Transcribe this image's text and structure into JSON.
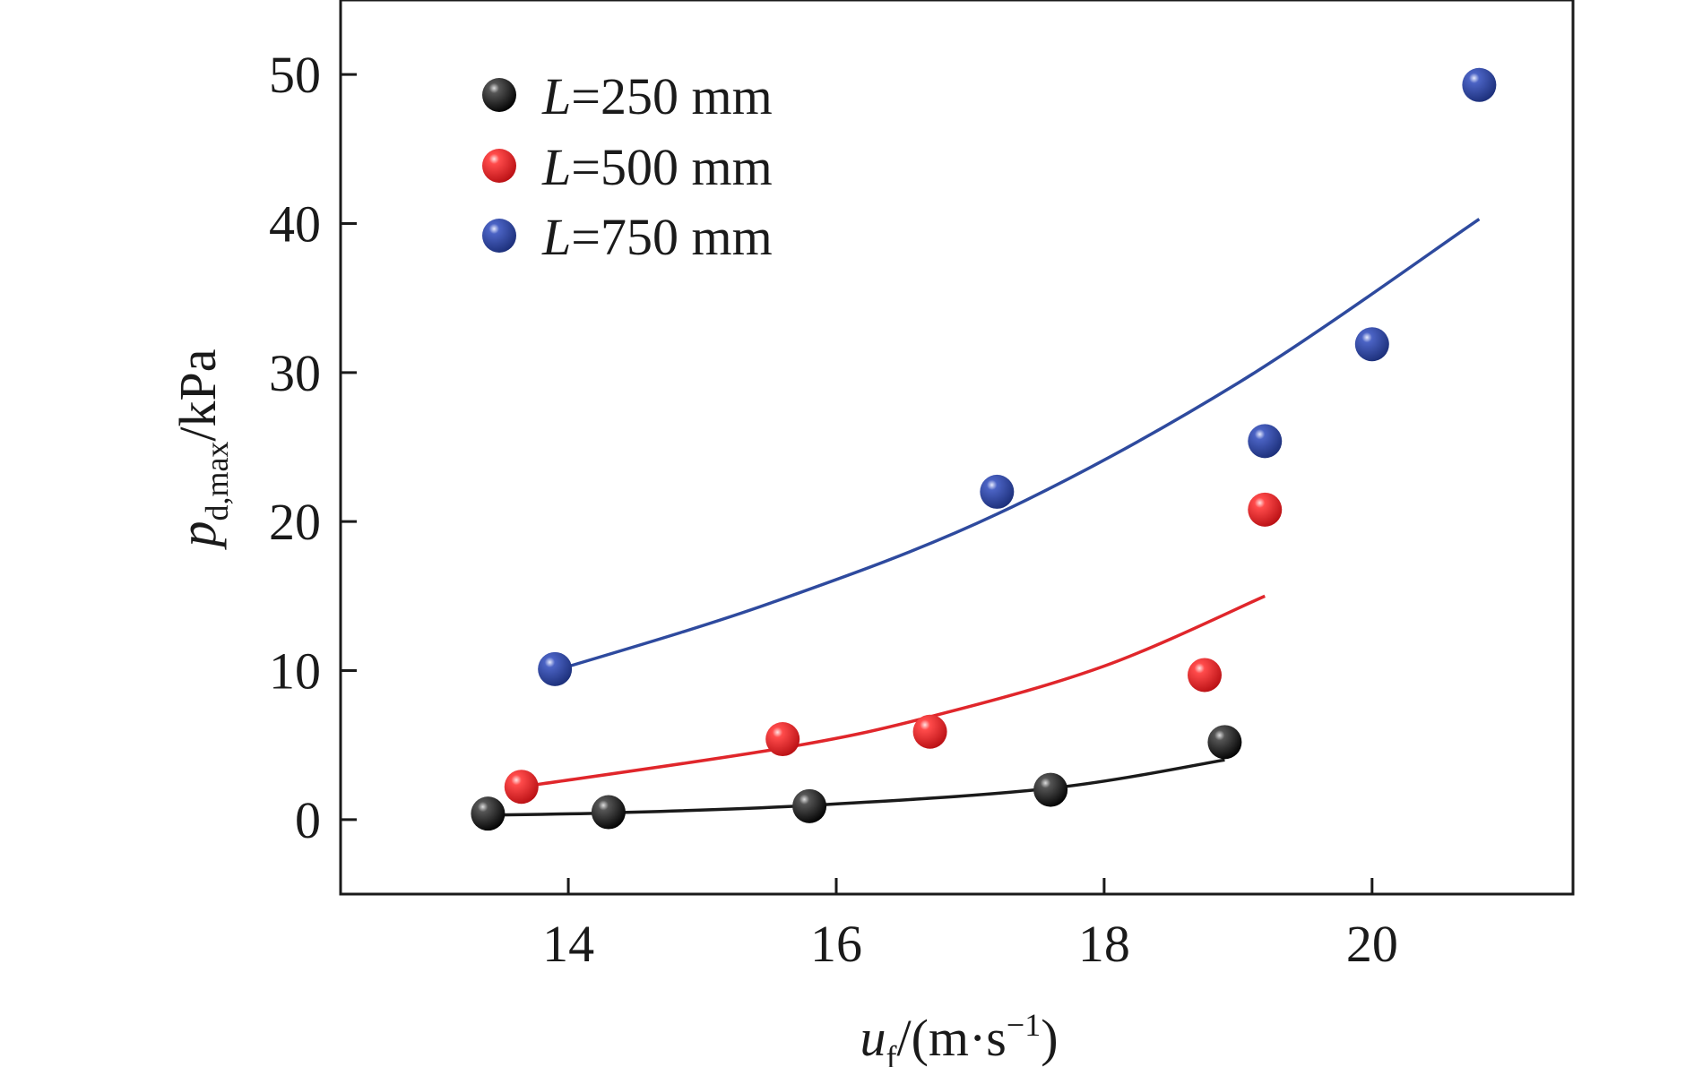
{
  "chart_data": {
    "type": "scatter",
    "xlim": [
      12.3,
      21.5
    ],
    "ylim": [
      -5,
      55
    ],
    "x_ticks": [
      14,
      16,
      18,
      20
    ],
    "y_ticks": [
      0,
      10,
      20,
      30,
      40,
      50
    ],
    "x_tick_labels": [
      "14",
      "16",
      "18",
      "20"
    ],
    "y_tick_labels": [
      "0",
      "10",
      "20",
      "30",
      "40",
      "50"
    ],
    "xlabel": {
      "var": "u",
      "sub": "f",
      "open": "/(m·s",
      "exp": "−1",
      "close": ")"
    },
    "ylabel": {
      "var": "p",
      "sub": "d,max",
      "rest": "/kPa"
    },
    "legend_position": "top-left",
    "series": [
      {
        "name": "L=250 mm",
        "name_var": "L",
        "name_rest": "=250 mm",
        "color": "#1a1a1a",
        "points": [
          [
            13.4,
            0.4
          ],
          [
            14.3,
            0.5
          ],
          [
            15.8,
            0.9
          ],
          [
            17.6,
            2.0
          ],
          [
            18.9,
            5.2
          ]
        ],
        "fit": [
          [
            13.4,
            0.3
          ],
          [
            14.3,
            0.45
          ],
          [
            15.8,
            0.95
          ],
          [
            17.6,
            2.1
          ],
          [
            18.9,
            4.0
          ]
        ]
      },
      {
        "name": "L=500 mm",
        "name_var": "L",
        "name_rest": "=500 mm",
        "color": "#e0262b",
        "points": [
          [
            13.65,
            2.2
          ],
          [
            15.6,
            5.4
          ],
          [
            16.7,
            5.9
          ],
          [
            18.75,
            9.7
          ],
          [
            19.2,
            20.8
          ]
        ],
        "fit": [
          [
            13.65,
            2.2
          ],
          [
            15.6,
            4.8
          ],
          [
            16.7,
            6.9
          ],
          [
            18.0,
            10.3
          ],
          [
            19.2,
            15.0
          ]
        ]
      },
      {
        "name": "L=750 mm",
        "name_var": "L",
        "name_rest": "=750 mm",
        "color": "#2e4a9e",
        "points": [
          [
            13.9,
            10.1
          ],
          [
            17.2,
            22.0
          ],
          [
            19.2,
            25.4
          ],
          [
            20.0,
            31.9
          ],
          [
            20.8,
            49.3
          ]
        ],
        "fit": [
          [
            13.9,
            10.0
          ],
          [
            15.5,
            14.5
          ],
          [
            17.2,
            20.5
          ],
          [
            19.0,
            29.3
          ],
          [
            20.8,
            40.3
          ]
        ]
      }
    ]
  }
}
